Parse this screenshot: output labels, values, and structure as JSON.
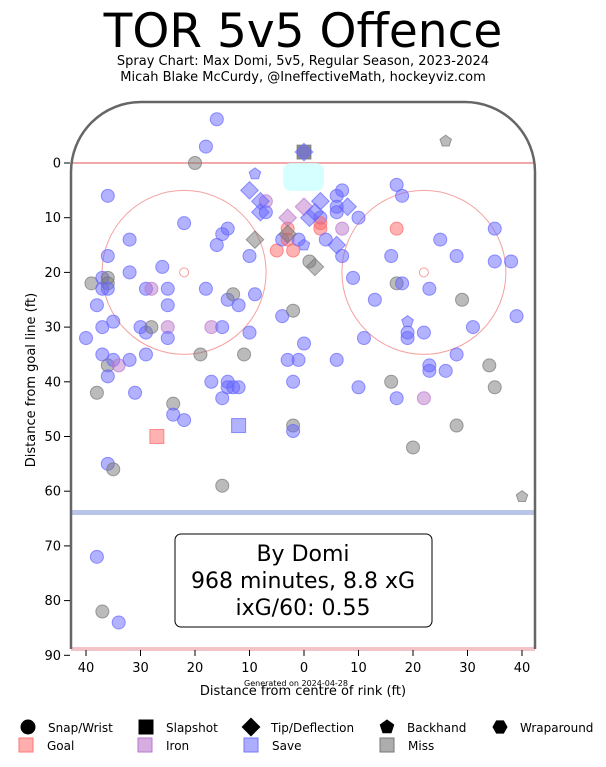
{
  "title": "TOR 5v5 Offence",
  "subtitle_lines": [
    "Spray Chart: Max Domi, 5v5, Regular Season, 2023-2024",
    "Micah Blake McCurdy, @IneffectiveMath, hockeyviz.com"
  ],
  "chart_data": {
    "type": "scatter",
    "xlabel": "Distance from centre of rink (ft)",
    "ylabel": "Distance from goal line (ft)",
    "xlim": [
      42.5,
      -42.5
    ],
    "ylim": [
      90,
      -11
    ],
    "xticks": [
      40,
      30,
      20,
      10,
      0,
      10,
      20,
      30,
      40
    ],
    "xtick_values": [
      40,
      30,
      20,
      10,
      0,
      -10,
      -20,
      -30,
      -40
    ],
    "yticks": [
      0,
      10,
      20,
      30,
      40,
      50,
      60,
      70,
      80,
      90
    ],
    "grid": false,
    "footer": "Generated on 2024-04-28",
    "summary_lines": [
      "By Domi",
      "968 minutes, 8.8 xG",
      "ixG/60: 0.55"
    ],
    "legend_placement": "bottom",
    "legend": {
      "shapes": [
        {
          "label": "Snap/Wrist",
          "marker": "circle"
        },
        {
          "label": "Slapshot",
          "marker": "square"
        },
        {
          "label": "Tip/Deflection",
          "marker": "diamond"
        },
        {
          "label": "Backhand",
          "marker": "pentagon"
        },
        {
          "label": "Wraparound",
          "marker": "hexagon"
        }
      ],
      "outcomes": [
        {
          "label": "Goal",
          "color": "#ff7777"
        },
        {
          "label": "Iron",
          "color": "#bb77cc"
        },
        {
          "label": "Save",
          "color": "#7777ff"
        },
        {
          "label": "Miss",
          "color": "#777777"
        }
      ]
    },
    "colors": {
      "goal": "#ff6666",
      "iron": "#bb77cc",
      "save": "#6666ff",
      "miss": "#777777",
      "crease": "#ccffff",
      "faceoff": "#f4a0a0",
      "blue_line": "#b8c4e8",
      "boards": "#666666"
    },
    "points": [
      {
        "x": 40,
        "y": 32,
        "shot": "circle",
        "result": "save"
      },
      {
        "x": 39,
        "y": 22,
        "shot": "circle",
        "result": "miss"
      },
      {
        "x": 38,
        "y": 26,
        "shot": "circle",
        "result": "save"
      },
      {
        "x": 38,
        "y": 42,
        "shot": "circle",
        "result": "miss"
      },
      {
        "x": 37,
        "y": 21,
        "shot": "circle",
        "result": "save"
      },
      {
        "x": 37,
        "y": 23,
        "shot": "circle",
        "result": "save"
      },
      {
        "x": 37,
        "y": 30,
        "shot": "circle",
        "result": "save"
      },
      {
        "x": 37,
        "y": 35,
        "shot": "circle",
        "result": "save"
      },
      {
        "x": 36,
        "y": 6,
        "shot": "circle",
        "result": "save"
      },
      {
        "x": 36,
        "y": 17,
        "shot": "circle",
        "result": "save"
      },
      {
        "x": 36,
        "y": 21,
        "shot": "circle",
        "result": "miss"
      },
      {
        "x": 36,
        "y": 22,
        "shot": "circle",
        "result": "miss"
      },
      {
        "x": 36,
        "y": 23,
        "shot": "circle",
        "result": "save"
      },
      {
        "x": 36,
        "y": 37,
        "shot": "circle",
        "result": "miss"
      },
      {
        "x": 36,
        "y": 39,
        "shot": "circle",
        "result": "save"
      },
      {
        "x": 36,
        "y": 55,
        "shot": "circle",
        "result": "save"
      },
      {
        "x": 35,
        "y": 29,
        "shot": "circle",
        "result": "save"
      },
      {
        "x": 35,
        "y": 36,
        "shot": "circle",
        "result": "save"
      },
      {
        "x": 35,
        "y": 56,
        "shot": "circle",
        "result": "miss"
      },
      {
        "x": 34,
        "y": 37,
        "shot": "circle",
        "result": "iron"
      },
      {
        "x": 32,
        "y": 14,
        "shot": "circle",
        "result": "save"
      },
      {
        "x": 32,
        "y": 20,
        "shot": "circle",
        "result": "save"
      },
      {
        "x": 32,
        "y": 36,
        "shot": "circle",
        "result": "save"
      },
      {
        "x": 31,
        "y": 42,
        "shot": "circle",
        "result": "save"
      },
      {
        "x": 30,
        "y": 30,
        "shot": "circle",
        "result": "save"
      },
      {
        "x": 29,
        "y": 23,
        "shot": "circle",
        "result": "save"
      },
      {
        "x": 29,
        "y": 31,
        "shot": "circle",
        "result": "save"
      },
      {
        "x": 29,
        "y": 35,
        "shot": "circle",
        "result": "save"
      },
      {
        "x": 28,
        "y": 23,
        "shot": "circle",
        "result": "iron"
      },
      {
        "x": 28,
        "y": 30,
        "shot": "circle",
        "result": "miss"
      },
      {
        "x": 26,
        "y": 19,
        "shot": "circle",
        "result": "save"
      },
      {
        "x": 25,
        "y": 23,
        "shot": "circle",
        "result": "save"
      },
      {
        "x": 25,
        "y": 26,
        "shot": "circle",
        "result": "save"
      },
      {
        "x": 25,
        "y": 30,
        "shot": "circle",
        "result": "iron"
      },
      {
        "x": 25,
        "y": 32,
        "shot": "circle",
        "result": "save"
      },
      {
        "x": 24,
        "y": 44,
        "shot": "circle",
        "result": "miss"
      },
      {
        "x": 24,
        "y": 46,
        "shot": "circle",
        "result": "save"
      },
      {
        "x": 22,
        "y": 11,
        "shot": "circle",
        "result": "save"
      },
      {
        "x": 22,
        "y": 47,
        "shot": "circle",
        "result": "save"
      },
      {
        "x": 20,
        "y": 0,
        "shot": "circle",
        "result": "miss"
      },
      {
        "x": 19,
        "y": 35,
        "shot": "circle",
        "result": "miss"
      },
      {
        "x": 18,
        "y": -3,
        "shot": "circle",
        "result": "save"
      },
      {
        "x": 18,
        "y": 23,
        "shot": "circle",
        "result": "save"
      },
      {
        "x": 17,
        "y": 30,
        "shot": "circle",
        "result": "iron"
      },
      {
        "x": 17,
        "y": 40,
        "shot": "circle",
        "result": "save"
      },
      {
        "x": 16,
        "y": -8,
        "shot": "circle",
        "result": "save"
      },
      {
        "x": 16,
        "y": 15,
        "shot": "circle",
        "result": "save"
      },
      {
        "x": 15,
        "y": 13,
        "shot": "circle",
        "result": "save"
      },
      {
        "x": 15,
        "y": 30,
        "shot": "circle",
        "result": "save"
      },
      {
        "x": 15,
        "y": 43,
        "shot": "circle",
        "result": "save"
      },
      {
        "x": 15,
        "y": 59,
        "shot": "circle",
        "result": "miss"
      },
      {
        "x": 14,
        "y": 12,
        "shot": "circle",
        "result": "save"
      },
      {
        "x": 14,
        "y": 25,
        "shot": "circle",
        "result": "save"
      },
      {
        "x": 14,
        "y": 40,
        "shot": "circle",
        "result": "save"
      },
      {
        "x": 14,
        "y": 41,
        "shot": "circle",
        "result": "save"
      },
      {
        "x": 13,
        "y": 24,
        "shot": "circle",
        "result": "miss"
      },
      {
        "x": 13,
        "y": 41,
        "shot": "circle",
        "result": "save"
      },
      {
        "x": 12,
        "y": 26,
        "shot": "circle",
        "result": "save"
      },
      {
        "x": 12,
        "y": 41,
        "shot": "circle",
        "result": "save"
      },
      {
        "x": 11,
        "y": 35,
        "shot": "circle",
        "result": "miss"
      },
      {
        "x": 10,
        "y": 17,
        "shot": "circle",
        "result": "save"
      },
      {
        "x": 10,
        "y": 31,
        "shot": "circle",
        "result": "save"
      },
      {
        "x": 9,
        "y": 24,
        "shot": "circle",
        "result": "save"
      },
      {
        "x": 7,
        "y": 7,
        "shot": "circle",
        "result": "iron"
      },
      {
        "x": 7,
        "y": 9,
        "shot": "circle",
        "result": "save"
      },
      {
        "x": 5,
        "y": 16,
        "shot": "circle",
        "result": "goal"
      },
      {
        "x": 4,
        "y": 14,
        "shot": "circle",
        "result": "save"
      },
      {
        "x": 4,
        "y": 28,
        "shot": "circle",
        "result": "save"
      },
      {
        "x": 3,
        "y": 12,
        "shot": "circle",
        "result": "goal"
      },
      {
        "x": 3,
        "y": 14,
        "shot": "circle",
        "result": "goal"
      },
      {
        "x": 3,
        "y": 36,
        "shot": "circle",
        "result": "save"
      },
      {
        "x": 2,
        "y": 16,
        "shot": "circle",
        "result": "goal"
      },
      {
        "x": 2,
        "y": 27,
        "shot": "circle",
        "result": "miss"
      },
      {
        "x": 2,
        "y": 40,
        "shot": "circle",
        "result": "save"
      },
      {
        "x": 2,
        "y": 48,
        "shot": "circle",
        "result": "miss"
      },
      {
        "x": 2,
        "y": 49,
        "shot": "circle",
        "result": "save"
      },
      {
        "x": 1,
        "y": 14,
        "shot": "circle",
        "result": "save"
      },
      {
        "x": 1,
        "y": 36,
        "shot": "circle",
        "result": "save"
      },
      {
        "x": 0,
        "y": 33,
        "shot": "circle",
        "result": "save"
      },
      {
        "x": -1,
        "y": 18,
        "shot": "circle",
        "result": "miss"
      },
      {
        "x": -3,
        "y": 10,
        "shot": "circle",
        "result": "save"
      },
      {
        "x": -3,
        "y": 11,
        "shot": "circle",
        "result": "goal"
      },
      {
        "x": -3,
        "y": 12,
        "shot": "circle",
        "result": "goal"
      },
      {
        "x": -4,
        "y": 14,
        "shot": "circle",
        "result": "save"
      },
      {
        "x": -6,
        "y": 6,
        "shot": "circle",
        "result": "save"
      },
      {
        "x": -6,
        "y": 8,
        "shot": "circle",
        "result": "save"
      },
      {
        "x": -6,
        "y": 9,
        "shot": "circle",
        "result": "save"
      },
      {
        "x": -7,
        "y": 5,
        "shot": "circle",
        "result": "save"
      },
      {
        "x": -7,
        "y": 12,
        "shot": "circle",
        "result": "iron"
      },
      {
        "x": -7,
        "y": 17,
        "shot": "circle",
        "result": "save"
      },
      {
        "x": -6,
        "y": 36,
        "shot": "circle",
        "result": "save"
      },
      {
        "x": -9,
        "y": 21,
        "shot": "circle",
        "result": "save"
      },
      {
        "x": -10,
        "y": 10,
        "shot": "circle",
        "result": "save"
      },
      {
        "x": -10,
        "y": 41,
        "shot": "circle",
        "result": "save"
      },
      {
        "x": -11,
        "y": 32,
        "shot": "circle",
        "result": "save"
      },
      {
        "x": -13,
        "y": 25,
        "shot": "circle",
        "result": "save"
      },
      {
        "x": -16,
        "y": 40,
        "shot": "circle",
        "result": "miss"
      },
      {
        "x": -16,
        "y": 17,
        "shot": "circle",
        "result": "save"
      },
      {
        "x": -17,
        "y": 4,
        "shot": "circle",
        "result": "save"
      },
      {
        "x": -17,
        "y": 12,
        "shot": "circle",
        "result": "goal"
      },
      {
        "x": -17,
        "y": 22,
        "shot": "circle",
        "result": "miss"
      },
      {
        "x": -17,
        "y": 43,
        "shot": "circle",
        "result": "save"
      },
      {
        "x": -18,
        "y": 6,
        "shot": "circle",
        "result": "save"
      },
      {
        "x": -18,
        "y": 22,
        "shot": "circle",
        "result": "save"
      },
      {
        "x": -19,
        "y": 31,
        "shot": "circle",
        "result": "save"
      },
      {
        "x": -19,
        "y": 32,
        "shot": "circle",
        "result": "save"
      },
      {
        "x": -20,
        "y": 52,
        "shot": "circle",
        "result": "miss"
      },
      {
        "x": -22,
        "y": 31,
        "shot": "circle",
        "result": "save"
      },
      {
        "x": -22,
        "y": 43,
        "shot": "circle",
        "result": "iron"
      },
      {
        "x": -23,
        "y": 23,
        "shot": "circle",
        "result": "save"
      },
      {
        "x": -23,
        "y": 37,
        "shot": "circle",
        "result": "save"
      },
      {
        "x": -23,
        "y": 38,
        "shot": "circle",
        "result": "save"
      },
      {
        "x": -25,
        "y": 14,
        "shot": "circle",
        "result": "save"
      },
      {
        "x": -26,
        "y": 38,
        "shot": "circle",
        "result": "save"
      },
      {
        "x": -28,
        "y": 17,
        "shot": "circle",
        "result": "save"
      },
      {
        "x": -28,
        "y": 35,
        "shot": "circle",
        "result": "save"
      },
      {
        "x": -28,
        "y": 48,
        "shot": "circle",
        "result": "miss"
      },
      {
        "x": -29,
        "y": 25,
        "shot": "circle",
        "result": "miss"
      },
      {
        "x": -31,
        "y": 30,
        "shot": "circle",
        "result": "save"
      },
      {
        "x": -35,
        "y": 12,
        "shot": "circle",
        "result": "save"
      },
      {
        "x": -35,
        "y": 18,
        "shot": "circle",
        "result": "save"
      },
      {
        "x": -35,
        "y": 41,
        "shot": "circle",
        "result": "miss"
      },
      {
        "x": -34,
        "y": 37,
        "shot": "circle",
        "result": "miss"
      },
      {
        "x": -38,
        "y": 18,
        "shot": "circle",
        "result": "save"
      },
      {
        "x": -39,
        "y": 28,
        "shot": "circle",
        "result": "save"
      },
      {
        "x": 38,
        "y": 72,
        "shot": "circle",
        "result": "save"
      },
      {
        "x": 37,
        "y": 82,
        "shot": "circle",
        "result": "miss"
      },
      {
        "x": 34,
        "y": 84,
        "shot": "circle",
        "result": "save"
      },
      {
        "x": 27,
        "y": 50,
        "shot": "square",
        "result": "goal"
      },
      {
        "x": 12,
        "y": 48,
        "shot": "square",
        "result": "save"
      },
      {
        "x": 0,
        "y": -2,
        "shot": "square",
        "result": "miss"
      },
      {
        "x": 0,
        "y": -2,
        "shot": "diamond",
        "result": "save"
      },
      {
        "x": 10,
        "y": 5,
        "shot": "diamond",
        "result": "save"
      },
      {
        "x": 8,
        "y": 7,
        "shot": "diamond",
        "result": "save"
      },
      {
        "x": 8,
        "y": 9,
        "shot": "diamond",
        "result": "save"
      },
      {
        "x": 9,
        "y": 14,
        "shot": "diamond",
        "result": "miss"
      },
      {
        "x": 3,
        "y": 10,
        "shot": "diamond",
        "result": "iron"
      },
      {
        "x": 3,
        "y": 13,
        "shot": "diamond",
        "result": "miss"
      },
      {
        "x": 0,
        "y": 8,
        "shot": "diamond",
        "result": "iron"
      },
      {
        "x": -1,
        "y": 10,
        "shot": "diamond",
        "result": "save"
      },
      {
        "x": -2,
        "y": 9,
        "shot": "diamond",
        "result": "save"
      },
      {
        "x": -3,
        "y": 7,
        "shot": "diamond",
        "result": "save"
      },
      {
        "x": -2,
        "y": 19,
        "shot": "diamond",
        "result": "miss"
      },
      {
        "x": -6,
        "y": 15,
        "shot": "diamond",
        "result": "save"
      },
      {
        "x": -8,
        "y": 8,
        "shot": "diamond",
        "result": "save"
      },
      {
        "x": -26,
        "y": -4,
        "shot": "pentagon",
        "result": "miss"
      },
      {
        "x": 9,
        "y": 2,
        "shot": "pentagon",
        "result": "save"
      },
      {
        "x": 0,
        "y": 15,
        "shot": "pentagon",
        "result": "save"
      },
      {
        "x": -19,
        "y": 29,
        "shot": "pentagon",
        "result": "save"
      },
      {
        "x": -40,
        "y": 61,
        "shot": "pentagon",
        "result": "miss"
      }
    ]
  }
}
